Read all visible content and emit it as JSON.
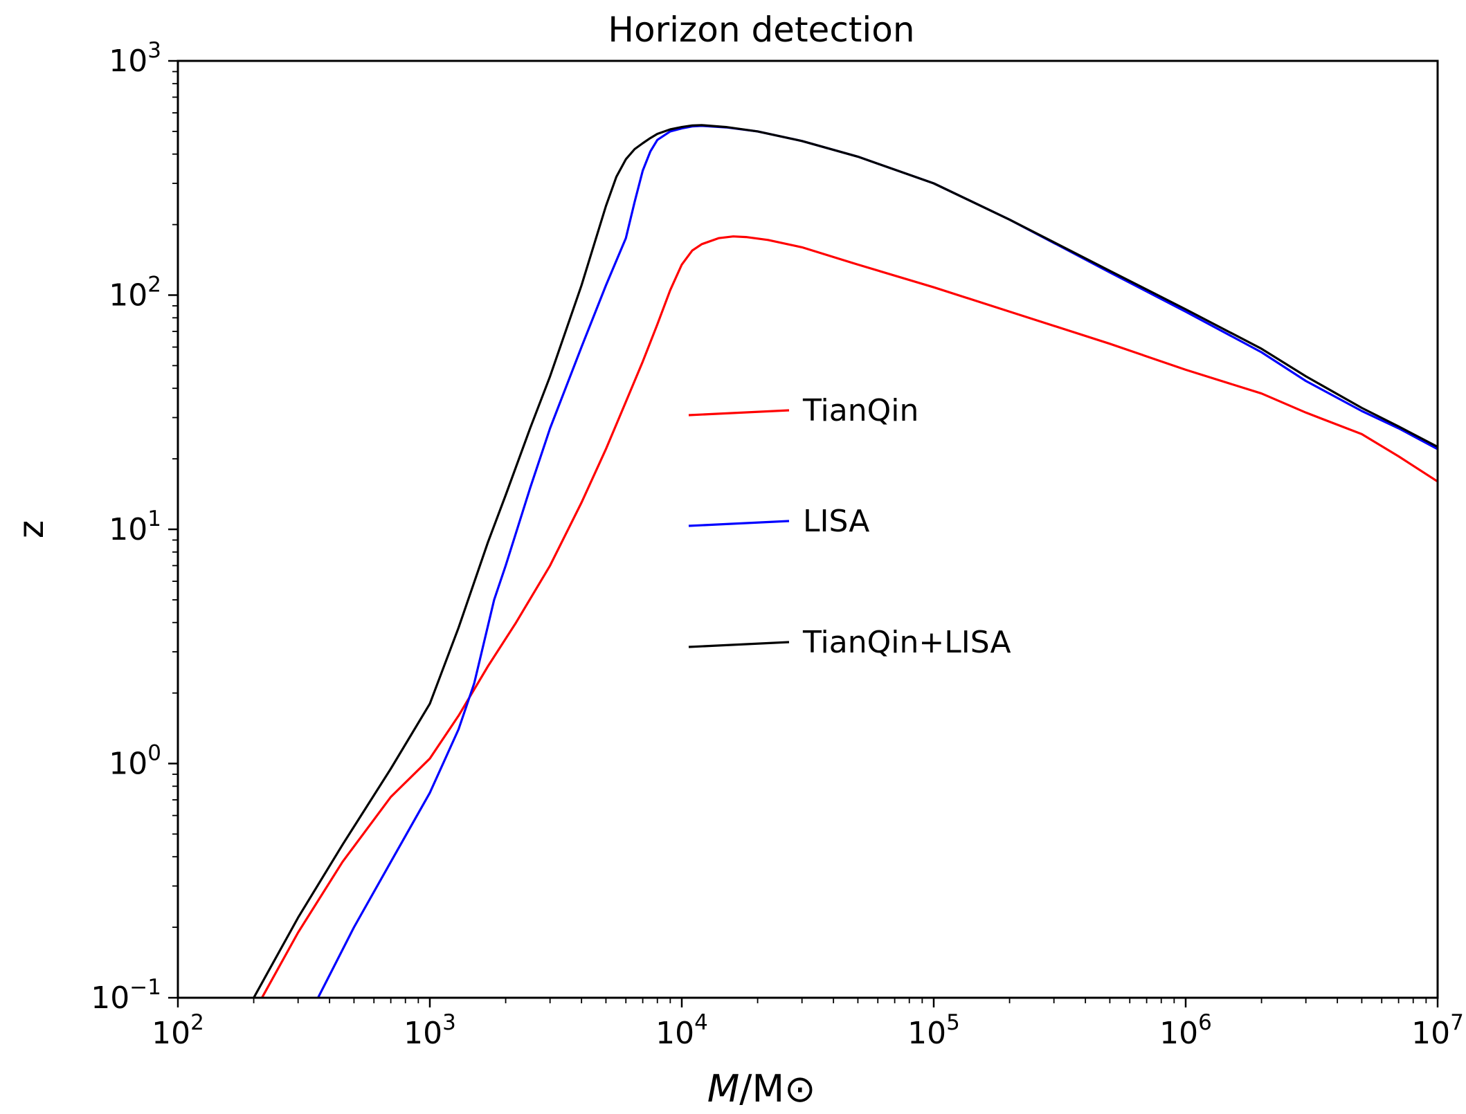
{
  "chart_data": {
    "type": "line",
    "title": "Horizon detection",
    "xlabel": "M/M⊙",
    "xlabel_parts": {
      "italic": "M",
      "rest": "/M⊙"
    },
    "ylabel": "z",
    "xscale": "log",
    "yscale": "log",
    "xlim": [
      100,
      10000000
    ],
    "ylim": [
      0.1,
      1000
    ],
    "grid": false,
    "legend_position": "center",
    "x_ticks": [
      {
        "value": 100,
        "base": "10",
        "exp": "2"
      },
      {
        "value": 1000,
        "base": "10",
        "exp": "3"
      },
      {
        "value": 10000,
        "base": "10",
        "exp": "4"
      },
      {
        "value": 100000,
        "base": "10",
        "exp": "5"
      },
      {
        "value": 1000000,
        "base": "10",
        "exp": "6"
      },
      {
        "value": 10000000,
        "base": "10",
        "exp": "7"
      }
    ],
    "y_ticks": [
      {
        "value": 0.1,
        "base": "10",
        "exp": "−1"
      },
      {
        "value": 1,
        "base": "10",
        "exp": "0"
      },
      {
        "value": 10,
        "base": "10",
        "exp": "1"
      },
      {
        "value": 100,
        "base": "10",
        "exp": "2"
      },
      {
        "value": 1000,
        "base": "10",
        "exp": "3"
      }
    ],
    "series": [
      {
        "name": "TianQin",
        "color": "#ff0000",
        "x": [
          210,
          300,
          450,
          700,
          1000,
          1300,
          1700,
          2200,
          3000,
          4000,
          5000,
          6000,
          7000,
          8000,
          9000,
          10000,
          11000,
          12000,
          14000,
          16000,
          18000,
          22000,
          30000,
          50000,
          100000,
          200000,
          500000,
          1000000,
          2000000,
          3000000,
          5000000,
          7000000,
          10000000
        ],
        "y": [
          0.095,
          0.19,
          0.38,
          0.72,
          1.05,
          1.6,
          2.6,
          4.0,
          7.0,
          13,
          22,
          35,
          52,
          75,
          105,
          135,
          155,
          165,
          175,
          178,
          177,
          172,
          160,
          135,
          108,
          85,
          62,
          48,
          38,
          31.5,
          25.5,
          20.5,
          16
        ]
      },
      {
        "name": "LISA",
        "color": "#0000ff",
        "x": [
          360,
          500,
          700,
          1000,
          1300,
          1500,
          1800,
          2000,
          2500,
          3000,
          4000,
          5000,
          6000,
          6500,
          7000,
          7500,
          8000,
          9000,
          10000,
          11000,
          12000,
          15000,
          20000,
          30000,
          50000,
          100000,
          200000,
          500000,
          1000000,
          2000000,
          3000000,
          5000000,
          7000000,
          10000000
        ],
        "y": [
          0.1,
          0.2,
          0.38,
          0.75,
          1.4,
          2.2,
          5,
          7,
          15,
          27,
          60,
          110,
          175,
          250,
          340,
          410,
          460,
          500,
          515,
          525,
          528,
          520,
          500,
          455,
          390,
          300,
          210,
          125,
          85,
          57,
          43,
          32,
          27,
          22
        ]
      },
      {
        "name": "TianQin+LISA",
        "color": "#000000",
        "x": [
          200,
          300,
          450,
          700,
          1000,
          1300,
          1700,
          2000,
          2500,
          3000,
          4000,
          5000,
          5500,
          6000,
          6500,
          7000,
          7500,
          8000,
          9000,
          10000,
          11000,
          12000,
          15000,
          20000,
          30000,
          50000,
          100000,
          200000,
          500000,
          1000000,
          2000000,
          3000000,
          5000000,
          7000000,
          10000000
        ],
        "y": [
          0.1,
          0.22,
          0.45,
          0.95,
          1.8,
          3.8,
          8.8,
          14,
          27,
          45,
          110,
          240,
          320,
          380,
          420,
          445,
          468,
          488,
          510,
          522,
          530,
          532,
          522,
          500,
          455,
          390,
          300,
          210,
          127,
          87,
          59,
          45,
          33,
          27.5,
          22.5
        ]
      }
    ]
  }
}
